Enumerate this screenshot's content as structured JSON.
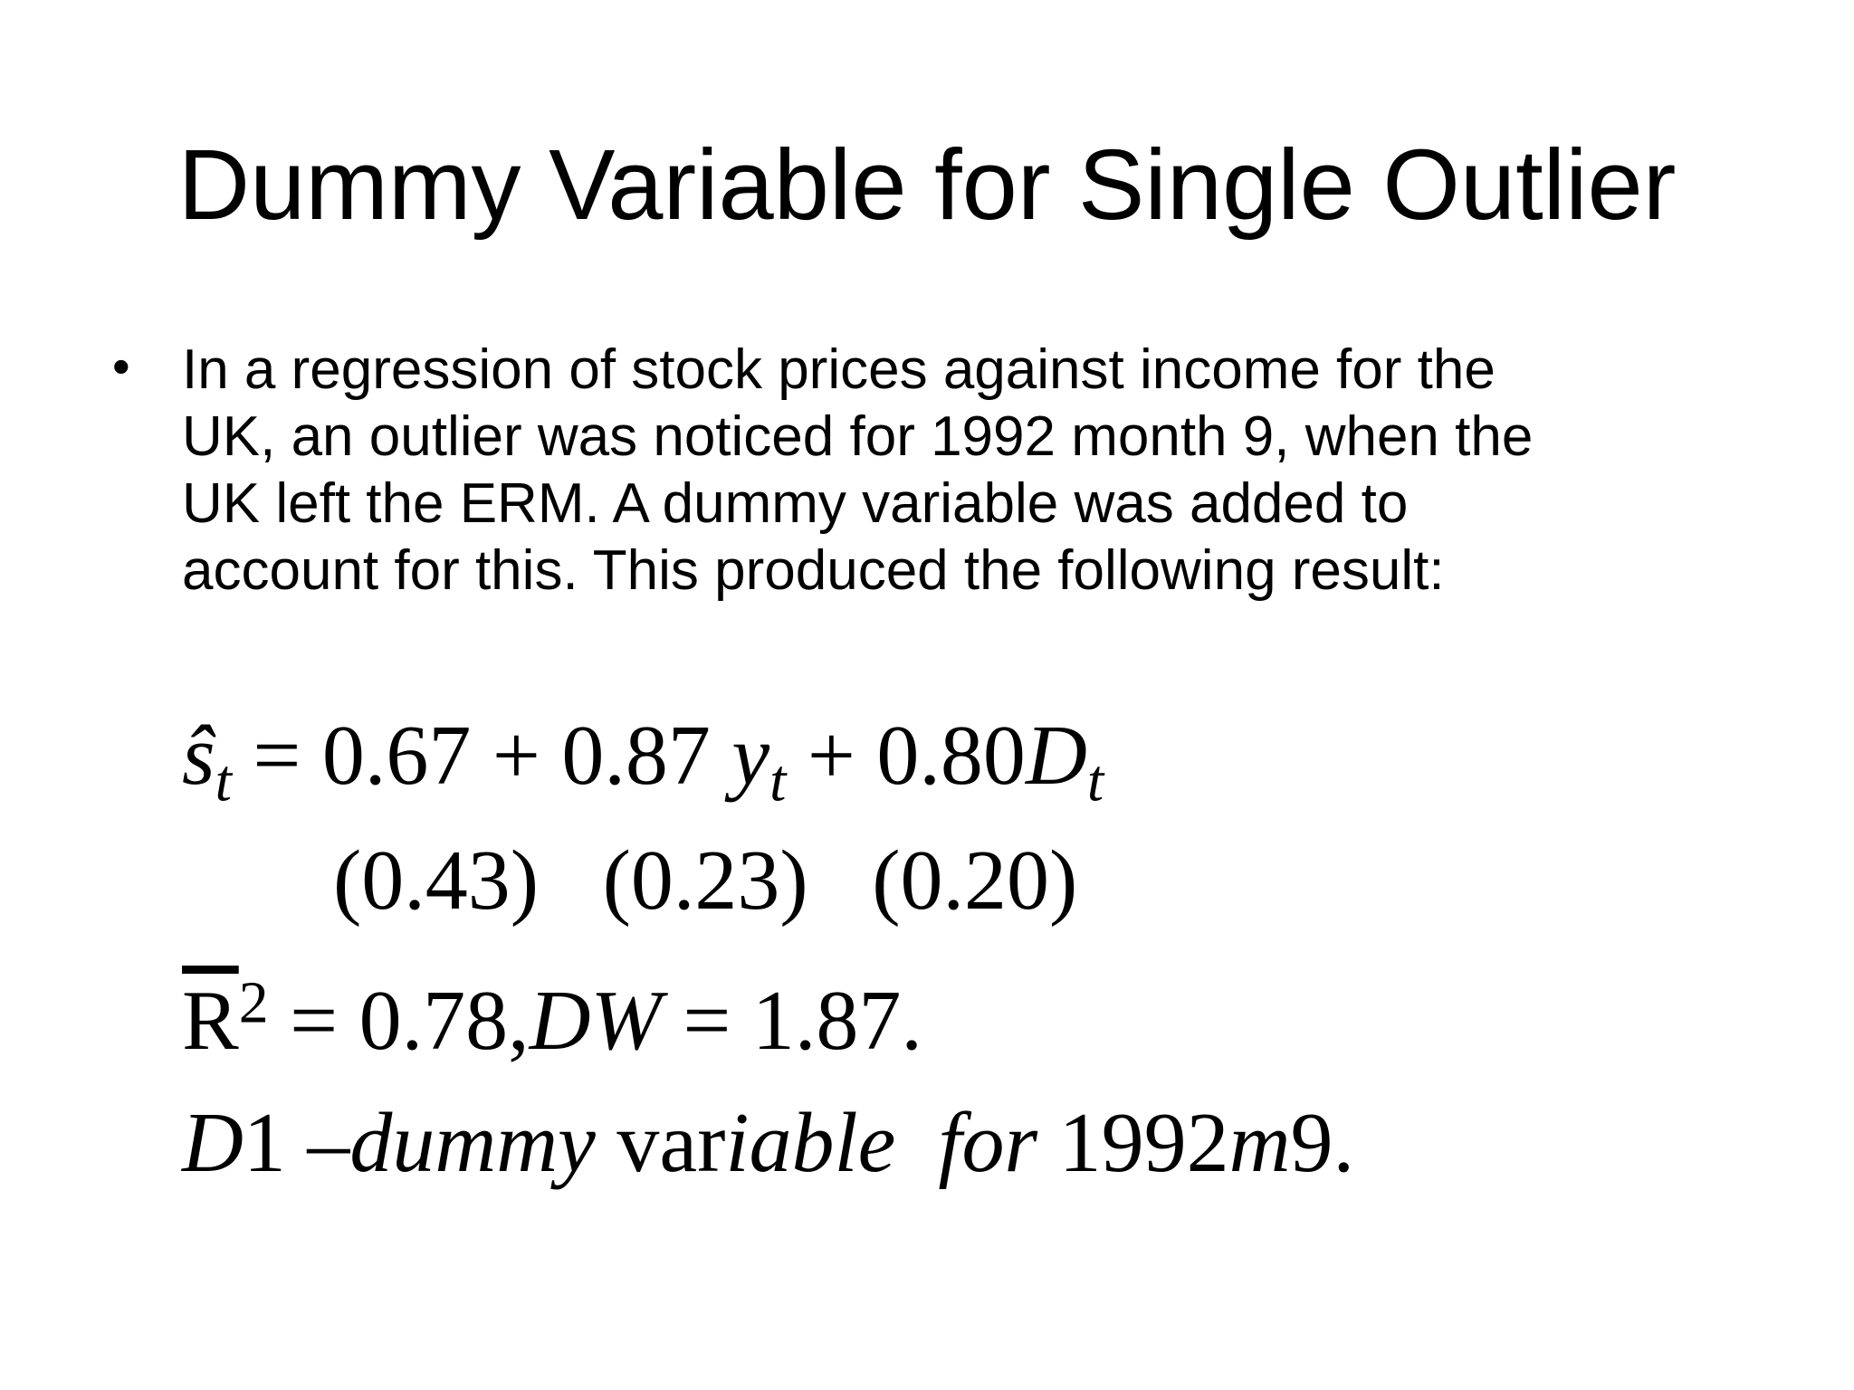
{
  "title": "Dummy Variable for Single Outlier",
  "bullet": "In a regression of stock prices against income for the UK, an outlier was noticed for 1992 month 9, when the UK left the ERM. A dummy variable was added to account for this. This produced the following result:",
  "equation": [
    "ŝ",
    "t",
    "= 0.67 + 0.87",
    "y",
    "t",
    "+ 0.80",
    "D",
    "t"
  ],
  "standard_errors": [
    "(0.43)",
    "(0.23)",
    "(0.20)"
  ],
  "fit": [
    "R",
    "2",
    "= 0.78,",
    "DW",
    "= 1.87."
  ],
  "note": [
    "D",
    "1 –",
    "dummy",
    "var",
    "iable  for",
    "1992",
    "m",
    "9."
  ]
}
